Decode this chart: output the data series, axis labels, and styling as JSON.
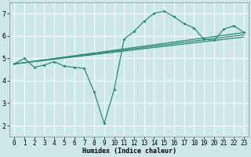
{
  "xlabel": "Humidex (Indice chaleur)",
  "background_color": "#cce8e8",
  "grid_color": "#ffffff",
  "line_color": "#2e8b74",
  "xlim": [
    -0.5,
    23.5
  ],
  "ylim": [
    1.5,
    7.5
  ],
  "yticks": [
    2,
    3,
    4,
    5,
    6,
    7
  ],
  "xticks": [
    0,
    1,
    2,
    3,
    4,
    5,
    6,
    7,
    8,
    9,
    10,
    11,
    12,
    13,
    14,
    15,
    16,
    17,
    18,
    19,
    20,
    21,
    22,
    23
  ],
  "series1_x": [
    0,
    1,
    2,
    3,
    4,
    5,
    6,
    7,
    8,
    9,
    10,
    11,
    12,
    13,
    14,
    15,
    16,
    17,
    18,
    19,
    20,
    21,
    22,
    23
  ],
  "series1_y": [
    4.75,
    5.0,
    4.6,
    4.7,
    4.85,
    4.65,
    4.6,
    4.55,
    3.5,
    2.1,
    3.6,
    5.85,
    6.2,
    6.65,
    7.0,
    7.1,
    6.85,
    6.55,
    6.35,
    5.85,
    5.8,
    6.3,
    6.45,
    6.15
  ],
  "line2_x": [
    0,
    23
  ],
  "line2_y": [
    4.75,
    6.15
  ],
  "line3_x": [
    0,
    23
  ],
  "line3_y": [
    4.75,
    6.05
  ],
  "line4_x": [
    0,
    23
  ],
  "line4_y": [
    4.75,
    5.95
  ],
  "xlabel_fontsize": 6,
  "tick_fontsize": 5.5
}
